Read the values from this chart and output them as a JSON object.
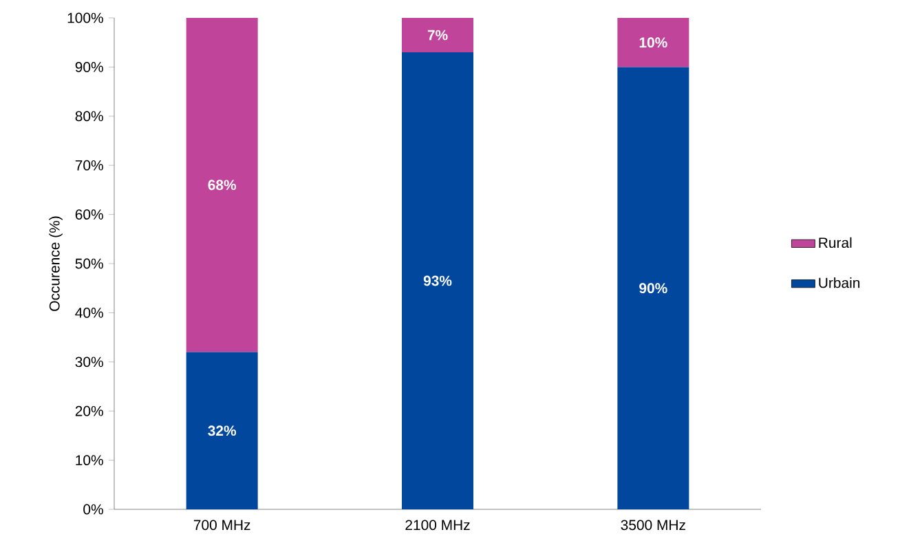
{
  "chart_data": {
    "type": "bar",
    "stacked": true,
    "ylabel": "Occurence (%)",
    "categories": [
      "700 MHz",
      "2100 MHz",
      "3500 MHz"
    ],
    "series": [
      {
        "name": "Urbain",
        "color": "#00479d",
        "values": [
          32,
          93,
          90
        ],
        "value_labels": [
          "32%",
          "93%",
          "90%"
        ]
      },
      {
        "name": "Rural",
        "color": "#c0449a",
        "values": [
          68,
          7,
          10
        ],
        "value_labels": [
          "68%",
          "7%",
          "10%"
        ]
      }
    ],
    "ylim": [
      0,
      100
    ],
    "yticks": [
      {
        "value": 0,
        "label": "0%"
      },
      {
        "value": 10,
        "label": "10%"
      },
      {
        "value": 20,
        "label": "20%"
      },
      {
        "value": 30,
        "label": "30%"
      },
      {
        "value": 40,
        "label": "40%"
      },
      {
        "value": 50,
        "label": "50%"
      },
      {
        "value": 60,
        "label": "60%"
      },
      {
        "value": 70,
        "label": "70%"
      },
      {
        "value": 80,
        "label": "80%"
      },
      {
        "value": 90,
        "label": "90%"
      },
      {
        "value": 100,
        "label": "100%"
      }
    ],
    "grid": false,
    "legend": "right"
  }
}
